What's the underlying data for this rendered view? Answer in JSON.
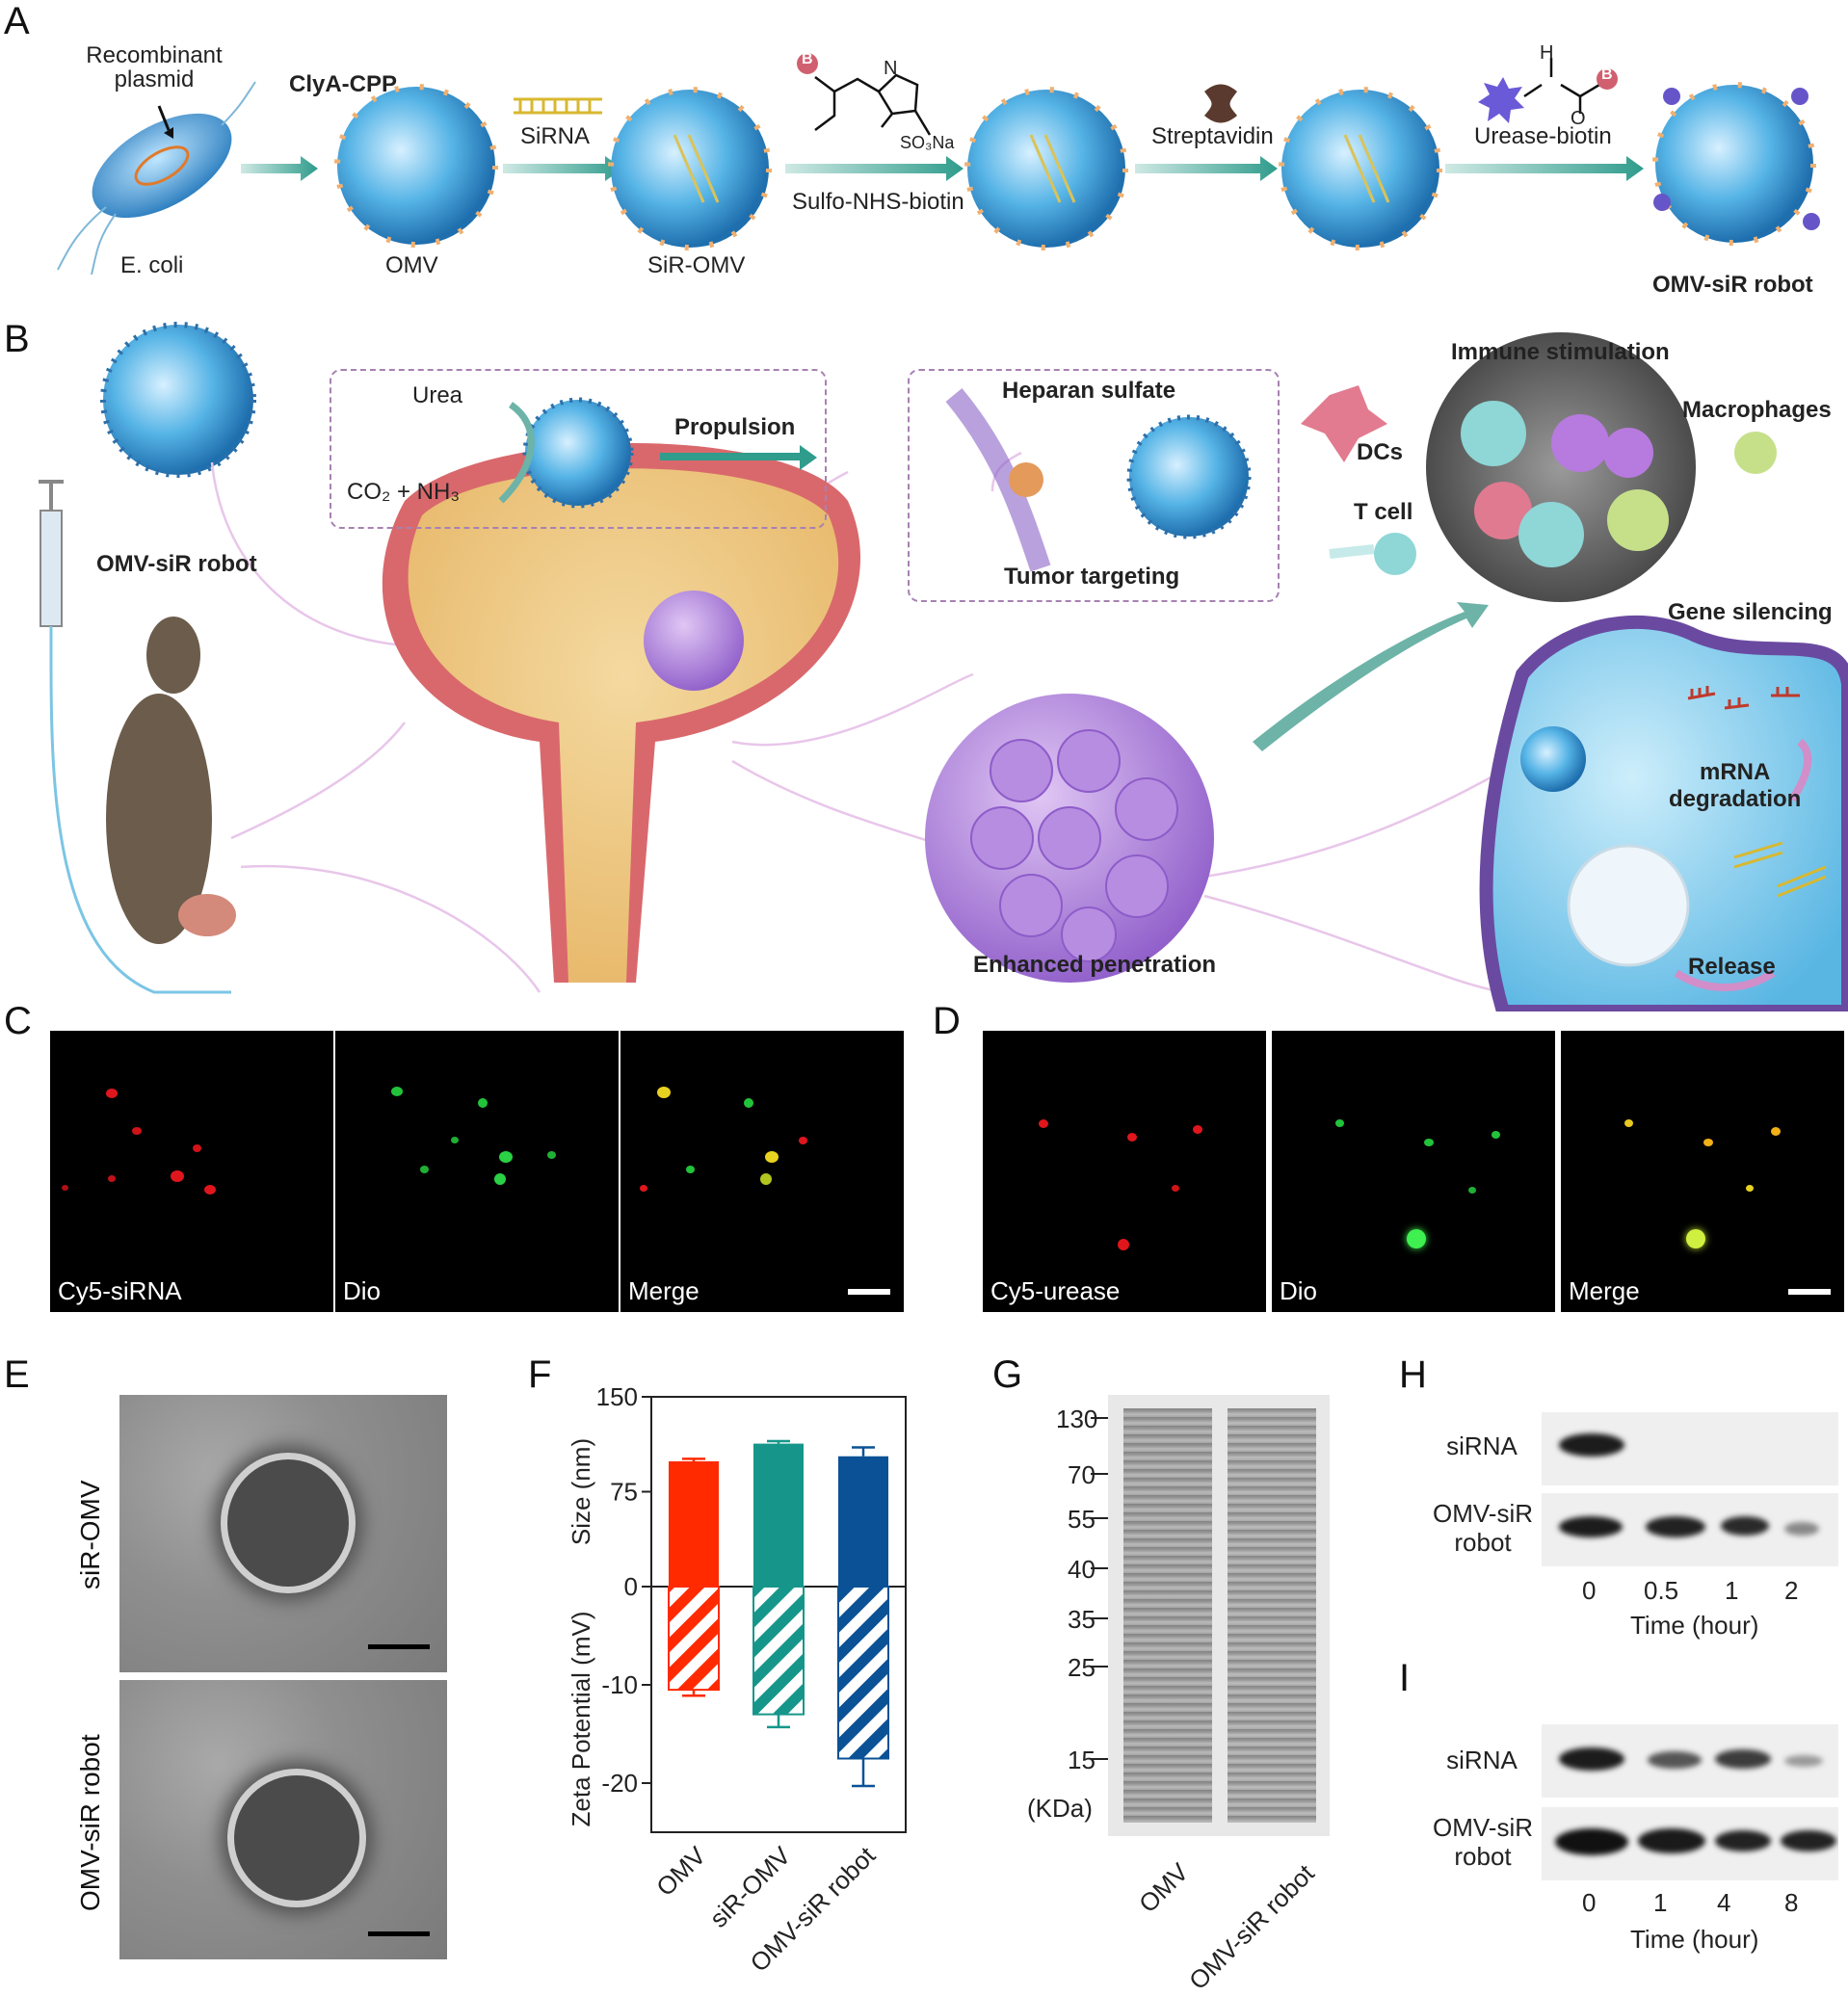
{
  "panels": {
    "A": "A",
    "B": "B",
    "C": "C",
    "D": "D",
    "E": "E",
    "F": "F",
    "G": "G",
    "H": "H",
    "I": "I"
  },
  "panelA": {
    "recombinant_plasmid": [
      "Recombinant",
      "plasmid"
    ],
    "e_coli": "E. coli",
    "clya_cpp": "ClyA-CPP",
    "omv": "OMV",
    "sirna": "SiRNA",
    "sir_omv": "SiR-OMV",
    "sulfo_nhs_biotin": "Sulfo-NHS-biotin",
    "so3na": "SO₃Na",
    "b_badge": "B",
    "n_atom": "N",
    "h_atom": "H",
    "o_atom": "O",
    "streptavidin": "Streptavidin",
    "urease_biotin": "Urease-biotin",
    "omv_sir_robot": "OMV-siR robot"
  },
  "panelB": {
    "omv_sir_robot": "OMV-siR robot",
    "urea": "Urea",
    "co2_nh3": "CO₂ + NH₃",
    "propulsion": "Propulsion",
    "heparan_sulfate": "Heparan sulfate",
    "tumor_targeting": "Tumor targeting",
    "dcs": "DCs",
    "t_cell": "T cell",
    "immune_stimulation": "Immune stimulation",
    "macrophages": "Macrophages",
    "gene_silencing": "Gene silencing",
    "mrna_degradation": [
      "mRNA",
      "degradation"
    ],
    "release": "Release",
    "enhanced_penetration": "Enhanced penetration"
  },
  "panelC": {
    "captions": [
      "Cy5-siRNA",
      "Dio",
      "Merge"
    ]
  },
  "panelD": {
    "captions": [
      "Cy5-urease",
      "Dio",
      "Merge"
    ]
  },
  "panelE": {
    "row_labels": [
      "siR-OMV",
      "OMV-siR robot"
    ]
  },
  "panelF": {
    "chart_data": {
      "type": "bar",
      "categories": [
        "OMV",
        "siR-OMV",
        "OMV-siR robot"
      ],
      "series": [
        {
          "name": "Size (nm)",
          "values": [
            99,
            113,
            103
          ],
          "errors": [
            2,
            2,
            7
          ]
        },
        {
          "name": "Zeta Potential (mV)",
          "values": [
            -10.5,
            -13.0,
            -17.5
          ],
          "errors": [
            0.6,
            1.3,
            2.8
          ]
        }
      ],
      "colors": [
        "#ff2a00",
        "#16968a",
        "#0b5195"
      ],
      "upper_axis": {
        "label": "Size (nm)",
        "ticks": [
          "150",
          "75",
          "0"
        ],
        "range": [
          0,
          150
        ]
      },
      "lower_axis": {
        "label": "Zeta Potential (mV)",
        "ticks": [
          "-10",
          "-20"
        ],
        "range": [
          -25,
          0
        ]
      }
    }
  },
  "panelG": {
    "ladder": [
      "130",
      "70",
      "55",
      "40",
      "35",
      "25",
      "15"
    ],
    "unit": "(KDa)",
    "lanes": [
      "OMV",
      "OMV-siR robot"
    ]
  },
  "panelH": {
    "rows": [
      "siRNA",
      "OMV-siR\nrobot"
    ],
    "row1": "siRNA",
    "row2a": "OMV-siR",
    "row2b": "robot",
    "times": [
      "0",
      "0.5",
      "1",
      "2"
    ],
    "xlabel": "Time (hour)"
  },
  "panelI": {
    "row1": "siRNA",
    "row2a": "OMV-siR",
    "row2b": "robot",
    "times": [
      "0",
      "1",
      "4",
      "8"
    ],
    "xlabel": "Time (hour)"
  }
}
